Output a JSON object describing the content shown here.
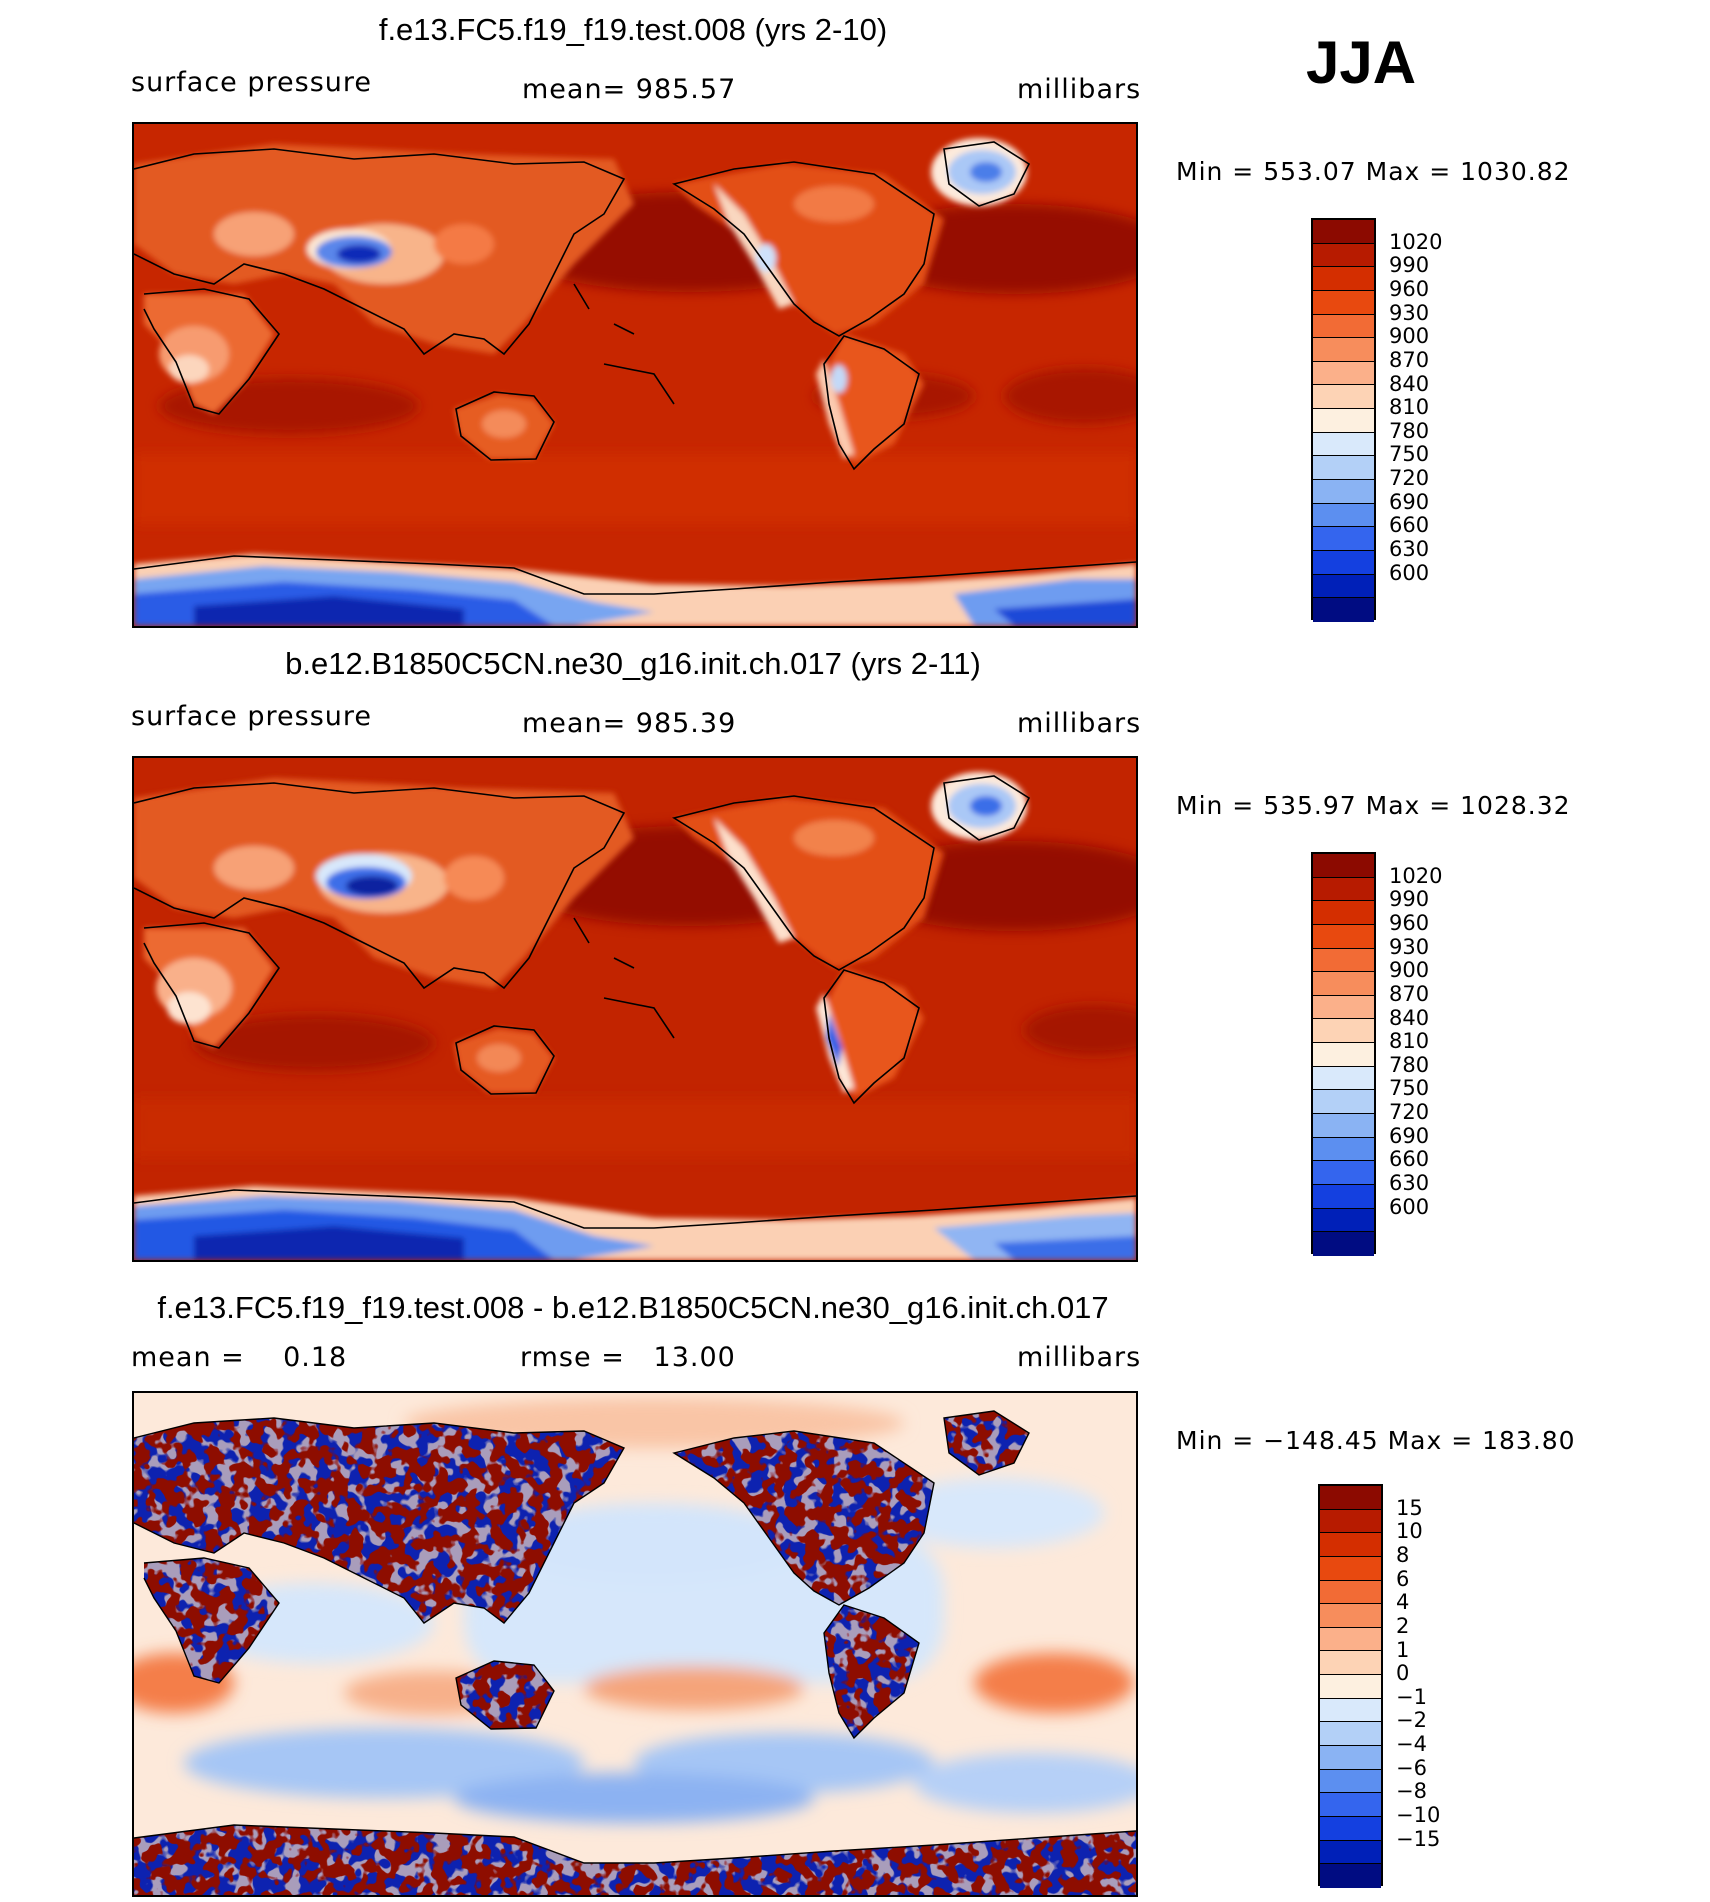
{
  "season": "JJA",
  "panels": [
    {
      "title": "f.e13.FC5.f19_f19.test.008 (yrs 2-10)",
      "left_label": "surface pressure",
      "center_label": "mean= 985.57",
      "right_label": "millibars",
      "minmax": "Min = 553.07 Max = 1030.82",
      "legend_labels": [
        "1020",
        "990",
        "960",
        "930",
        "900",
        "870",
        "840",
        "810",
        "780",
        "750",
        "720",
        "690",
        "660",
        "630",
        "600"
      ],
      "legend_colors": [
        "#8c0a00",
        "#b71b00",
        "#d42e00",
        "#e8490f",
        "#f26b35",
        "#f78d5c",
        "#fbb08a",
        "#fdd3b5",
        "#fdf0e0",
        "#d9e9fb",
        "#b3d0f7",
        "#8ab3f3",
        "#5c8ff0",
        "#3465ee",
        "#1440e0",
        "#0020b8",
        "#000c82"
      ]
    },
    {
      "title": "b.e12.B1850C5CN.ne30_g16.init.ch.017 (yrs 2-11)",
      "left_label": "surface pressure",
      "center_label": "mean= 985.39",
      "right_label": "millibars",
      "minmax": "Min = 535.97 Max = 1028.32",
      "legend_labels": [
        "1020",
        "990",
        "960",
        "930",
        "900",
        "870",
        "840",
        "810",
        "780",
        "750",
        "720",
        "690",
        "660",
        "630",
        "600"
      ],
      "legend_colors": [
        "#8c0a00",
        "#b71b00",
        "#d42e00",
        "#e8490f",
        "#f26b35",
        "#f78d5c",
        "#fbb08a",
        "#fdd3b5",
        "#fdf0e0",
        "#d9e9fb",
        "#b3d0f7",
        "#8ab3f3",
        "#5c8ff0",
        "#3465ee",
        "#1440e0",
        "#0020b8",
        "#000c82"
      ]
    },
    {
      "title": "f.e13.FC5.f19_f19.test.008 - b.e12.B1850C5CN.ne30_g16.init.ch.017",
      "left_label": "mean =    0.18",
      "center_label": "rmse =   13.00",
      "right_label": "millibars",
      "minmax": "Min = −148.45 Max = 183.80",
      "legend_labels": [
        "15",
        "10",
        "8",
        "6",
        "4",
        "2",
        "1",
        "0",
        "−1",
        "−2",
        "−4",
        "−6",
        "−8",
        "−10",
        "−15"
      ],
      "legend_colors": [
        "#8c0a00",
        "#b71b00",
        "#d42e00",
        "#e8490f",
        "#f26b35",
        "#f78d5c",
        "#fbb08a",
        "#fdd3b5",
        "#fdf0e0",
        "#d9e9fb",
        "#b3d0f7",
        "#8ab3f3",
        "#5c8ff0",
        "#3465ee",
        "#1440e0",
        "#0020b8",
        "#000c82"
      ]
    }
  ]
}
